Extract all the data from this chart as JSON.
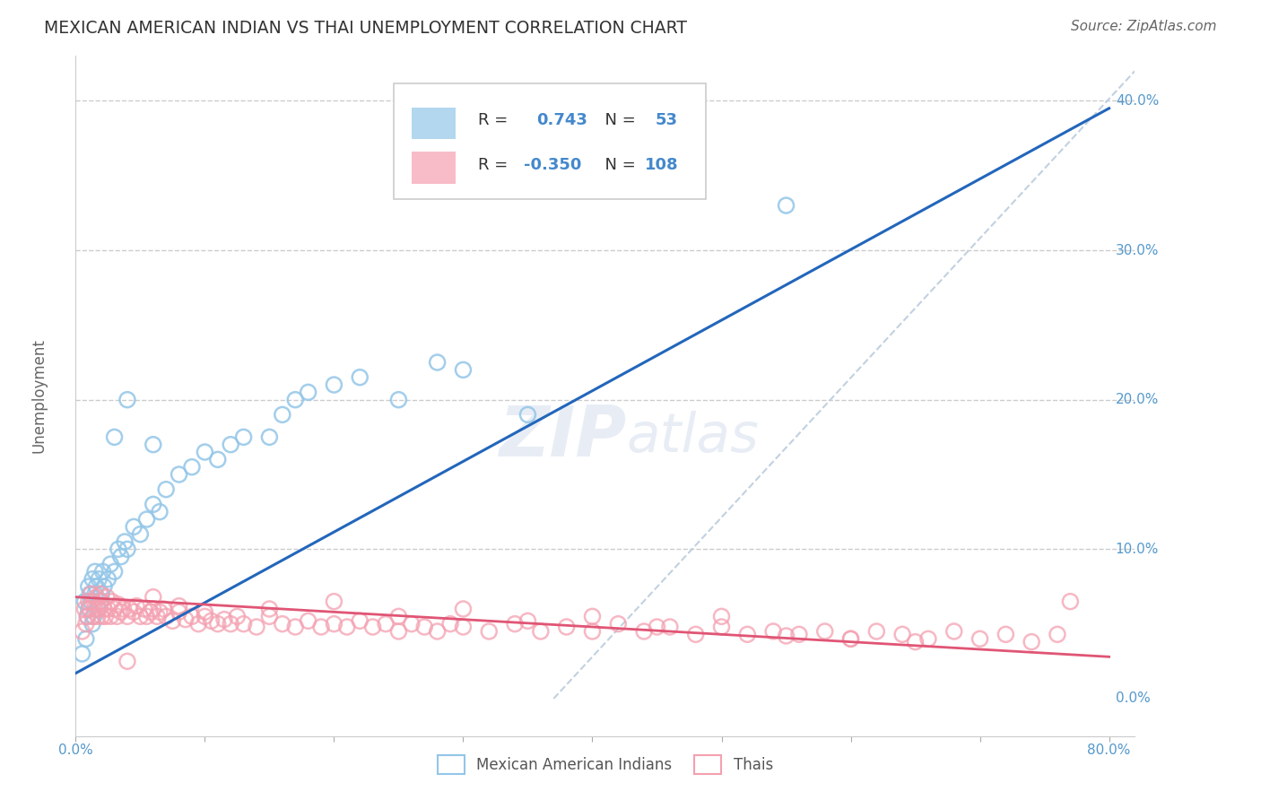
{
  "title": "MEXICAN AMERICAN INDIAN VS THAI UNEMPLOYMENT CORRELATION CHART",
  "source_text": "Source: ZipAtlas.com",
  "ylabel": "Unemployment",
  "blue_R": "0.743",
  "blue_N": "53",
  "pink_R": "-0.350",
  "pink_N": "108",
  "blue_color": "#93C6E8",
  "blue_line_color": "#2266BB",
  "pink_color": "#F4A0B0",
  "pink_line_color": "#E05575",
  "dashed_line_color": "#BBCCDD",
  "background_color": "#FFFFFF",
  "title_color": "#333333",
  "axis_label_color": "#5599CC",
  "legend_text_color": "#333333",
  "legend_value_color": "#4488CC",
  "watermark_color": "#E8EDF5",
  "xlim": [
    0.0,
    0.82
  ],
  "ylim": [
    -0.025,
    0.43
  ],
  "blue_line_x0": 0.0,
  "blue_line_y0": 0.017,
  "blue_line_x1": 0.8,
  "blue_line_y1": 0.395,
  "pink_line_x0": 0.0,
  "pink_line_y0": 0.068,
  "pink_line_x1": 0.8,
  "pink_line_y1": 0.028,
  "dashed_line_x0": 0.37,
  "dashed_line_y0": 0.0,
  "dashed_line_x1": 0.82,
  "dashed_line_y1": 0.42,
  "blue_x": [
    0.005,
    0.007,
    0.008,
    0.009,
    0.01,
    0.01,
    0.011,
    0.012,
    0.013,
    0.013,
    0.014,
    0.015,
    0.015,
    0.016,
    0.017,
    0.018,
    0.019,
    0.02,
    0.021,
    0.022,
    0.025,
    0.027,
    0.03,
    0.033,
    0.035,
    0.038,
    0.04,
    0.045,
    0.05,
    0.055,
    0.06,
    0.065,
    0.07,
    0.08,
    0.09,
    0.1,
    0.11,
    0.12,
    0.13,
    0.15,
    0.16,
    0.17,
    0.18,
    0.2,
    0.22,
    0.25,
    0.28,
    0.3,
    0.35,
    0.06,
    0.04,
    0.03,
    0.55
  ],
  "blue_y": [
    0.03,
    0.065,
    0.04,
    0.055,
    0.06,
    0.075,
    0.07,
    0.065,
    0.05,
    0.08,
    0.055,
    0.07,
    0.085,
    0.075,
    0.06,
    0.08,
    0.065,
    0.07,
    0.085,
    0.075,
    0.08,
    0.09,
    0.085,
    0.1,
    0.095,
    0.105,
    0.1,
    0.115,
    0.11,
    0.12,
    0.13,
    0.125,
    0.14,
    0.15,
    0.155,
    0.165,
    0.16,
    0.17,
    0.175,
    0.175,
    0.19,
    0.2,
    0.205,
    0.21,
    0.215,
    0.2,
    0.225,
    0.22,
    0.19,
    0.17,
    0.2,
    0.175,
    0.33
  ],
  "pink_x": [
    0.005,
    0.007,
    0.008,
    0.009,
    0.01,
    0.011,
    0.012,
    0.013,
    0.014,
    0.015,
    0.016,
    0.017,
    0.018,
    0.019,
    0.02,
    0.02,
    0.022,
    0.023,
    0.024,
    0.025,
    0.027,
    0.028,
    0.03,
    0.032,
    0.033,
    0.035,
    0.037,
    0.04,
    0.042,
    0.045,
    0.047,
    0.05,
    0.053,
    0.055,
    0.058,
    0.06,
    0.063,
    0.065,
    0.068,
    0.07,
    0.075,
    0.08,
    0.085,
    0.09,
    0.095,
    0.1,
    0.105,
    0.11,
    0.115,
    0.12,
    0.125,
    0.13,
    0.14,
    0.15,
    0.16,
    0.17,
    0.18,
    0.19,
    0.2,
    0.21,
    0.22,
    0.23,
    0.24,
    0.25,
    0.26,
    0.27,
    0.28,
    0.29,
    0.3,
    0.32,
    0.34,
    0.36,
    0.38,
    0.4,
    0.42,
    0.44,
    0.46,
    0.48,
    0.5,
    0.52,
    0.54,
    0.56,
    0.58,
    0.6,
    0.62,
    0.64,
    0.66,
    0.68,
    0.7,
    0.72,
    0.74,
    0.76,
    0.3,
    0.5,
    0.2,
    0.4,
    0.6,
    0.15,
    0.25,
    0.35,
    0.45,
    0.55,
    0.65,
    0.1,
    0.08,
    0.06,
    0.04,
    0.77
  ],
  "pink_y": [
    0.045,
    0.06,
    0.05,
    0.055,
    0.065,
    0.06,
    0.07,
    0.055,
    0.065,
    0.06,
    0.068,
    0.055,
    0.06,
    0.07,
    0.055,
    0.065,
    0.06,
    0.055,
    0.068,
    0.06,
    0.055,
    0.065,
    0.06,
    0.055,
    0.063,
    0.058,
    0.06,
    0.055,
    0.06,
    0.058,
    0.062,
    0.055,
    0.06,
    0.055,
    0.058,
    0.06,
    0.055,
    0.058,
    0.06,
    0.055,
    0.052,
    0.058,
    0.053,
    0.055,
    0.05,
    0.055,
    0.052,
    0.05,
    0.053,
    0.05,
    0.055,
    0.05,
    0.048,
    0.055,
    0.05,
    0.048,
    0.052,
    0.048,
    0.05,
    0.048,
    0.052,
    0.048,
    0.05,
    0.045,
    0.05,
    0.048,
    0.045,
    0.05,
    0.048,
    0.045,
    0.05,
    0.045,
    0.048,
    0.045,
    0.05,
    0.045,
    0.048,
    0.043,
    0.048,
    0.043,
    0.045,
    0.043,
    0.045,
    0.04,
    0.045,
    0.043,
    0.04,
    0.045,
    0.04,
    0.043,
    0.038,
    0.043,
    0.06,
    0.055,
    0.065,
    0.055,
    0.04,
    0.06,
    0.055,
    0.052,
    0.048,
    0.042,
    0.038,
    0.058,
    0.062,
    0.068,
    0.025,
    0.065
  ]
}
